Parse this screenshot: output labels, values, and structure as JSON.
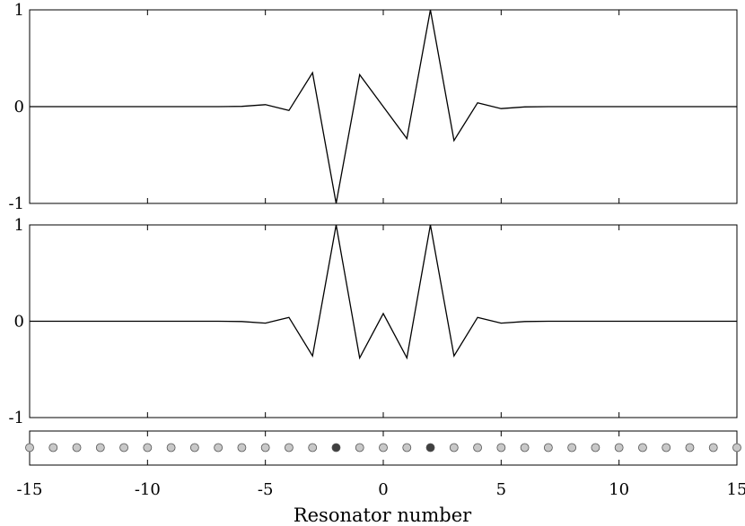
{
  "chart_data": [
    {
      "type": "line",
      "panel": "top",
      "x": [
        -15,
        -14,
        -13,
        -12,
        -11,
        -10,
        -9,
        -8,
        -7,
        -6,
        -5,
        -4,
        -3,
        -2,
        -1,
        0,
        1,
        2,
        3,
        4,
        5,
        6,
        7,
        8,
        9,
        10,
        11,
        12,
        13,
        14,
        15
      ],
      "series": [
        {
          "values": [
            0,
            0,
            0,
            0,
            0,
            0,
            0,
            0,
            0,
            0.003,
            0.02,
            -0.04,
            0.35,
            -1.0,
            0.33,
            0.0,
            -0.33,
            1.0,
            -0.35,
            0.04,
            -0.02,
            -0.003,
            0,
            0,
            0,
            0,
            0,
            0,
            0,
            0,
            0
          ],
          "color": "#000000"
        }
      ],
      "xlim": [
        -15,
        15
      ],
      "ylim": [
        -1,
        1
      ],
      "yticks": [
        "-1",
        "0",
        "1"
      ],
      "grid": false
    },
    {
      "type": "line",
      "panel": "middle",
      "x": [
        -15,
        -14,
        -13,
        -12,
        -11,
        -10,
        -9,
        -8,
        -7,
        -6,
        -5,
        -4,
        -3,
        -2,
        -1,
        0,
        1,
        2,
        3,
        4,
        5,
        6,
        7,
        8,
        9,
        10,
        11,
        12,
        13,
        14,
        15
      ],
      "series": [
        {
          "values": [
            0,
            0,
            0,
            0,
            0,
            0,
            0,
            0,
            0,
            -0.003,
            -0.02,
            0.04,
            -0.36,
            1.0,
            -0.38,
            0.08,
            -0.38,
            1.0,
            -0.36,
            0.04,
            -0.02,
            -0.003,
            0,
            0,
            0,
            0,
            0,
            0,
            0,
            0,
            0
          ],
          "color": "#000000"
        }
      ],
      "xlim": [
        -15,
        15
      ],
      "ylim": [
        -1,
        1
      ],
      "yticks": [
        "-1",
        "0",
        "1"
      ],
      "grid": false
    },
    {
      "type": "scatter",
      "panel": "bottom",
      "x": [
        -15,
        -14,
        -13,
        -12,
        -11,
        -10,
        -9,
        -8,
        -7,
        -6,
        -5,
        -4,
        -3,
        -2,
        -1,
        0,
        1,
        2,
        3,
        4,
        5,
        6,
        7,
        8,
        9,
        10,
        11,
        12,
        13,
        14,
        15
      ],
      "highlighted": [
        -2,
        2
      ],
      "colors": {
        "normal": "#c8c8c8",
        "highlighted": "#404040",
        "edge": "#555555"
      },
      "xlim": [
        -15,
        15
      ],
      "xticks": [
        "-15",
        "-10",
        "-5",
        "0",
        "5",
        "10",
        "15"
      ],
      "xlabel": "Resonator number",
      "grid": false
    }
  ]
}
